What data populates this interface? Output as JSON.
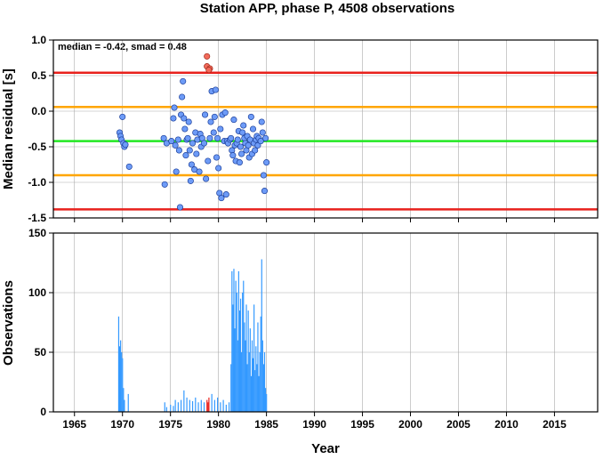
{
  "chart_data": [
    {
      "type": "scatter",
      "title": "Station APP, phase P, 4508 observations",
      "ylabel": "Median residual [s]",
      "annotation": "median = -0.42, smad = 0.48",
      "xlim": [
        1962.8,
        2019.5
      ],
      "xticks": [
        1965,
        1970,
        1975,
        1980,
        1985,
        1990,
        1995,
        2000,
        2005,
        2010,
        2015
      ],
      "ylim": [
        -1.5,
        1.0
      ],
      "yticks": [
        {
          "value": 1.0,
          "label": "1.0"
        },
        0.5,
        {
          "value": 0,
          "label": "0.0"
        },
        -0.5,
        {
          "value": -1.0,
          "label": "-1.0"
        },
        -1.5
      ],
      "grid": true,
      "hlines": [
        {
          "value": 0.54,
          "color": "#e8211c"
        },
        {
          "value": 0.06,
          "color": "#ffa600"
        },
        {
          "value": -0.42,
          "color": "#22e822"
        },
        {
          "value": -0.9,
          "color": "#ffa600"
        },
        {
          "value": -1.38,
          "color": "#e8211c"
        }
      ],
      "series": [
        {
          "color": "#6d9bf7",
          "stroke": "#1c3f9a",
          "x": [
            1969.7,
            1969.8,
            1969.9,
            1970.0,
            1970.1,
            1970.2,
            1970.3,
            1970.7,
            1974.3,
            1974.4,
            1974.6,
            1975.1,
            1975.3,
            1975.4,
            1975.5,
            1975.6,
            1975.8,
            1975.9,
            1976.0,
            1976.1,
            1976.2,
            1976.3,
            1976.4,
            1976.5,
            1976.6,
            1976.7,
            1976.8,
            1976.9,
            1977.0,
            1977.1,
            1977.2,
            1977.3,
            1977.5,
            1977.6,
            1977.7,
            1977.8,
            1978.0,
            1978.1,
            1978.2,
            1978.3,
            1978.5,
            1978.6,
            1978.7,
            1978.9,
            1979.1,
            1979.2,
            1979.3,
            1979.5,
            1979.6,
            1979.7,
            1979.8,
            1979.9,
            1980.0,
            1980.1,
            1980.2,
            1980.3,
            1980.4,
            1980.6,
            1980.7,
            1980.8,
            1980.9,
            1981.0,
            1981.2,
            1981.3,
            1981.4,
            1981.5,
            1981.6,
            1981.7,
            1981.8,
            1981.9,
            1982.0,
            1982.1,
            1982.2,
            1982.3,
            1982.4,
            1982.5,
            1982.6,
            1982.7,
            1982.8,
            1982.9,
            1983.0,
            1983.1,
            1983.2,
            1983.3,
            1983.4,
            1983.5,
            1983.6,
            1983.7,
            1983.8,
            1983.9,
            1984.0,
            1984.1,
            1984.2,
            1984.4,
            1984.5,
            1984.6,
            1984.7,
            1984.8,
            1984.9,
            1985.0
          ],
          "values": [
            -0.3,
            -0.35,
            -0.4,
            -0.08,
            -0.45,
            -0.5,
            -0.47,
            -0.78,
            -0.38,
            -1.03,
            -0.45,
            -0.42,
            -0.1,
            0.05,
            -0.48,
            -0.85,
            -0.4,
            -0.55,
            -1.35,
            -0.05,
            0.2,
            0.42,
            -0.1,
            -0.25,
            -0.62,
            -0.4,
            -0.38,
            -0.15,
            -0.55,
            -0.98,
            -0.75,
            -0.45,
            -0.82,
            -0.3,
            -0.6,
            -0.4,
            -0.85,
            -0.32,
            -0.5,
            -0.38,
            -0.45,
            -0.05,
            -0.95,
            -0.7,
            -0.38,
            -0.15,
            0.28,
            -0.3,
            -0.08,
            0.3,
            -0.65,
            -0.38,
            -0.8,
            -1.15,
            -0.25,
            -1.22,
            -0.05,
            -0.42,
            -0.02,
            -1.17,
            -0.42,
            -0.45,
            -0.4,
            -0.38,
            -0.55,
            -0.62,
            -0.12,
            -0.48,
            -0.7,
            -0.45,
            -0.4,
            -0.28,
            -0.72,
            -0.5,
            -0.6,
            -0.3,
            -0.2,
            -0.38,
            -0.45,
            -0.55,
            -0.35,
            -0.48,
            -0.65,
            -0.4,
            -0.08,
            -0.6,
            -0.25,
            -0.45,
            -0.55,
            -0.4,
            -0.35,
            -0.48,
            -0.38,
            -0.42,
            -0.15,
            -0.3,
            -0.9,
            -1.12,
            -0.38,
            -0.72
          ]
        },
        {
          "color": "#f26b5b",
          "stroke": "#a02a1c",
          "x": [
            1978.8,
            1978.8,
            1979.1,
            1979.0
          ],
          "values": [
            0.77,
            0.63,
            0.6,
            0.58
          ]
        }
      ]
    },
    {
      "type": "bar",
      "xlabel": "Year",
      "ylabel": "Observations",
      "xlim": [
        1962.8,
        2019.5
      ],
      "xticks": [
        1965,
        1970,
        1975,
        1980,
        1985,
        1990,
        1995,
        2000,
        2005,
        2010,
        2015
      ],
      "ylim": [
        0,
        150
      ],
      "yticks": [
        0,
        50,
        100,
        150
      ],
      "grid": true,
      "series": [
        {
          "color": "#3399ff",
          "x": [
            1969.6,
            1969.7,
            1969.8,
            1969.9,
            1970.0,
            1970.1,
            1970.2,
            1970.6,
            1974.4,
            1974.6,
            1975.0,
            1975.3,
            1975.5,
            1975.8,
            1976.1,
            1976.4,
            1976.7,
            1977.0,
            1977.3,
            1977.6,
            1977.9,
            1978.2,
            1978.5,
            1979.3,
            1979.6,
            1979.9,
            1980.2,
            1980.5,
            1980.8,
            1981.1,
            1981.3,
            1981.4,
            1981.5,
            1981.6,
            1981.7,
            1981.8,
            1981.9,
            1982.0,
            1982.1,
            1982.2,
            1982.3,
            1982.4,
            1982.5,
            1982.6,
            1982.7,
            1982.8,
            1982.9,
            1983.0,
            1983.1,
            1983.2,
            1983.3,
            1983.4,
            1983.5,
            1983.6,
            1983.7,
            1983.8,
            1983.9,
            1984.0,
            1984.1,
            1984.2,
            1984.3,
            1984.4,
            1984.5,
            1984.6,
            1984.7,
            1984.8,
            1984.9,
            1985.0
          ],
          "values": [
            80,
            55,
            60,
            50,
            45,
            20,
            10,
            15,
            8,
            4,
            6,
            5,
            10,
            8,
            10,
            18,
            12,
            10,
            9,
            12,
            8,
            10,
            8,
            15,
            10,
            12,
            8,
            10,
            6,
            8,
            40,
            118,
            90,
            120,
            70,
            110,
            100,
            60,
            118,
            85,
            95,
            50,
            100,
            110,
            75,
            60,
            90,
            40,
            85,
            50,
            70,
            30,
            60,
            45,
            90,
            35,
            55,
            40,
            75,
            30,
            50,
            80,
            128,
            60,
            40,
            50,
            20,
            15
          ]
        },
        {
          "color": "#e8211c",
          "x": [
            1978.8,
            1978.9,
            1979.0
          ],
          "values": [
            10,
            8,
            12
          ]
        }
      ]
    }
  ]
}
